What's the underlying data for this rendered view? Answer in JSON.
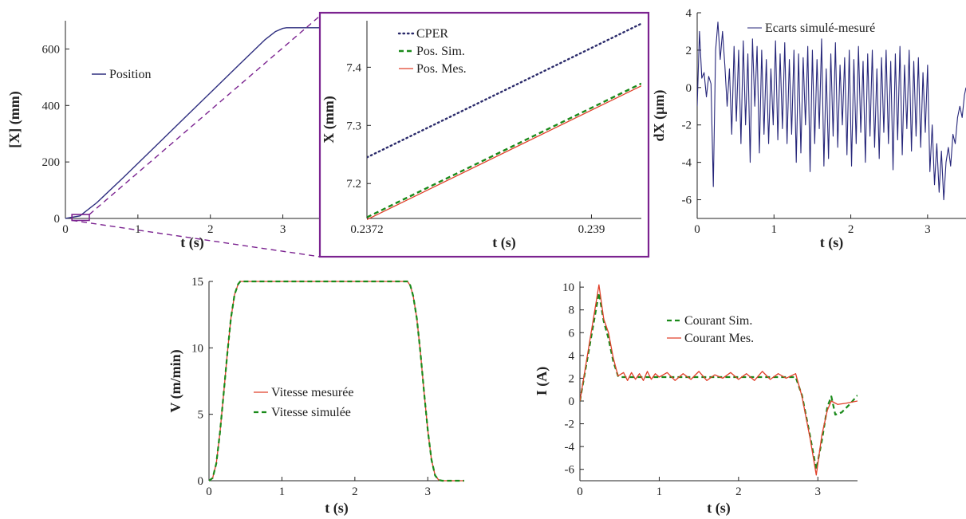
{
  "colors": {
    "position": "#2e2e7f",
    "cper": "#2b2b6b",
    "sim": "#1a8a1a",
    "mes": "#e0402a",
    "ecart": "#26267a",
    "zoom_frame": "#7b2390"
  },
  "chart_data": [
    {
      "id": "position",
      "type": "line",
      "xlabel": "t (s)",
      "ylabel": "[X] (mm)",
      "xlim": [
        0,
        3.5
      ],
      "ylim": [
        0,
        700
      ],
      "xticks": [
        0,
        1,
        2,
        3
      ],
      "yticks": [
        0,
        200,
        400,
        600
      ],
      "legend_position": "upper-left",
      "series": [
        {
          "name": "Position",
          "x": [
            0,
            0.2,
            0.43,
            0.8,
            1.2,
            1.6,
            2.0,
            2.4,
            2.75,
            2.9,
            3.0,
            3.05,
            3.2,
            3.5
          ],
          "y": [
            0,
            9,
            55,
            145,
            245,
            345,
            445,
            545,
            632,
            662,
            673,
            675,
            675,
            675
          ]
        }
      ]
    },
    {
      "id": "zoom",
      "type": "line",
      "xlabel": "t (s)",
      "ylabel": "X (mm)",
      "xlim": [
        0.2372,
        0.2394
      ],
      "ylim": [
        7.14,
        7.48
      ],
      "xticks": [
        0.2372,
        0.239
      ],
      "yticks": [
        7.2,
        7.3,
        7.4
      ],
      "legend_position": "upper-left",
      "series": [
        {
          "name": "CPER",
          "x": [
            0.2372,
            0.2394
          ],
          "y": [
            7.245,
            7.475
          ]
        },
        {
          "name": "Pos. Sim.",
          "x": [
            0.2372,
            0.2394
          ],
          "y": [
            7.142,
            7.372
          ]
        },
        {
          "name": "Pos. Mes.",
          "x": [
            0.2372,
            0.2394
          ],
          "y": [
            7.138,
            7.368
          ]
        }
      ]
    },
    {
      "id": "ecarts",
      "type": "line",
      "xlabel": "t (s)",
      "ylabel": "dX (µm)",
      "xlim": [
        0,
        3.5
      ],
      "ylim": [
        -7,
        4
      ],
      "xticks": [
        0,
        1,
        2,
        3
      ],
      "yticks": [
        -6,
        -4,
        -2,
        0,
        2,
        4
      ],
      "legend_position": "top-right",
      "series": [
        {
          "name": "Ecarts simulé-mesuré",
          "x": [
            0,
            0.03,
            0.06,
            0.09,
            0.12,
            0.15,
            0.18,
            0.21,
            0.24,
            0.27,
            0.3,
            0.33,
            0.36,
            0.39,
            0.42,
            0.45,
            0.48,
            0.51,
            0.54,
            0.57,
            0.6,
            0.63,
            0.66,
            0.69,
            0.72,
            0.75,
            0.78,
            0.81,
            0.84,
            0.87,
            0.9,
            0.93,
            0.96,
            0.99,
            1.02,
            1.05,
            1.08,
            1.11,
            1.14,
            1.17,
            1.2,
            1.23,
            1.26,
            1.29,
            1.32,
            1.35,
            1.38,
            1.41,
            1.44,
            1.47,
            1.5,
            1.53,
            1.56,
            1.59,
            1.62,
            1.65,
            1.68,
            1.71,
            1.74,
            1.77,
            1.8,
            1.83,
            1.86,
            1.89,
            1.92,
            1.95,
            1.98,
            2.01,
            2.04,
            2.07,
            2.1,
            2.13,
            2.16,
            2.19,
            2.22,
            2.25,
            2.28,
            2.31,
            2.34,
            2.37,
            2.4,
            2.43,
            2.46,
            2.49,
            2.52,
            2.55,
            2.58,
            2.61,
            2.64,
            2.67,
            2.7,
            2.73,
            2.76,
            2.79,
            2.82,
            2.85,
            2.88,
            2.91,
            2.94,
            2.97,
            3.0,
            3.03,
            3.06,
            3.09,
            3.12,
            3.15,
            3.18,
            3.21,
            3.24,
            3.27,
            3.3,
            3.33,
            3.36,
            3.39,
            3.42,
            3.45,
            3.48,
            3.5
          ],
          "y": [
            -1.0,
            3.0,
            0.5,
            0.8,
            -0.5,
            0.6,
            0.2,
            -5.3,
            2.0,
            3.5,
            1.5,
            3.0,
            1.2,
            -1.0,
            1.0,
            -2.5,
            2.2,
            -1.8,
            2.0,
            -3.0,
            2.5,
            -2.0,
            1.8,
            -4.0,
            2.6,
            -1.0,
            2.2,
            -3.5,
            2.0,
            -2.5,
            1.5,
            -3.0,
            1.0,
            -2.0,
            2.5,
            -2.8,
            1.8,
            -2.2,
            2.4,
            -3.0,
            1.5,
            -2.5,
            2.0,
            -4.0,
            1.8,
            -3.5,
            1.6,
            -2.0,
            2.2,
            -4.5,
            2.0,
            -3.0,
            1.5,
            -2.2,
            2.6,
            -4.2,
            1.0,
            -3.8,
            1.8,
            -2.6,
            2.4,
            -3.2,
            1.2,
            -2.0,
            1.6,
            -3.6,
            2.0,
            -4.2,
            1.5,
            -3.0,
            2.2,
            -2.4,
            1.4,
            -4.0,
            1.8,
            -2.6,
            2.0,
            -3.2,
            1.0,
            -3.8,
            1.6,
            -2.4,
            2.0,
            -3.0,
            1.4,
            -4.4,
            1.8,
            -2.8,
            2.2,
            -3.6,
            1.2,
            -2.2,
            2.0,
            -3.4,
            1.4,
            -2.6,
            1.6,
            -3.2,
            0.8,
            -2.4,
            1.2,
            -4.5,
            -2.0,
            -5.2,
            -3.0,
            -5.6,
            -3.4,
            -6.0,
            -4.0,
            -3.2,
            -4.2,
            -2.5,
            -3.0,
            -1.6,
            -1.0,
            -1.6,
            -0.4,
            0.0
          ]
        }
      ]
    },
    {
      "id": "vitesse",
      "type": "line",
      "xlabel": "t (s)",
      "ylabel": "V (m/min)",
      "xlim": [
        0,
        3.5
      ],
      "ylim": [
        0,
        15
      ],
      "xticks": [
        0,
        1,
        2,
        3
      ],
      "yticks": [
        0,
        5,
        10,
        15
      ],
      "legend_position": "center-left",
      "series": [
        {
          "name": "Vitesse mesurée",
          "x": [
            0,
            0.05,
            0.1,
            0.15,
            0.2,
            0.25,
            0.3,
            0.35,
            0.4,
            0.43,
            0.5,
            1.0,
            1.5,
            2.0,
            2.5,
            2.72,
            2.76,
            2.8,
            2.85,
            2.9,
            2.95,
            3.0,
            3.05,
            3.1,
            3.15,
            3.2,
            3.3,
            3.5
          ],
          "y": [
            0,
            0.2,
            1.3,
            3.6,
            6.5,
            9.5,
            12.2,
            14.0,
            14.8,
            15.0,
            15.0,
            15.0,
            15.0,
            15.0,
            15.0,
            15.0,
            14.7,
            13.9,
            12.2,
            9.6,
            6.6,
            3.8,
            1.6,
            0.4,
            0.05,
            0,
            0,
            0
          ]
        },
        {
          "name": "Vitesse simulée",
          "x": [
            0,
            0.05,
            0.1,
            0.15,
            0.2,
            0.25,
            0.3,
            0.35,
            0.4,
            0.43,
            0.5,
            1.0,
            1.5,
            2.0,
            2.5,
            2.72,
            2.76,
            2.8,
            2.85,
            2.9,
            2.95,
            3.0,
            3.05,
            3.1,
            3.15,
            3.2,
            3.3,
            3.5
          ],
          "y": [
            0,
            0.2,
            1.3,
            3.6,
            6.5,
            9.5,
            12.2,
            14.0,
            14.8,
            15.0,
            15.0,
            15.0,
            15.0,
            15.0,
            15.0,
            15.0,
            14.7,
            13.9,
            12.2,
            9.6,
            6.6,
            3.8,
            1.6,
            0.4,
            0.05,
            0,
            0,
            0
          ]
        }
      ]
    },
    {
      "id": "courant",
      "type": "line",
      "xlabel": "t (s)",
      "ylabel": "I (A)",
      "xlim": [
        0,
        3.5
      ],
      "ylim": [
        -7,
        10.5
      ],
      "xticks": [
        0,
        1,
        2,
        3
      ],
      "yticks": [
        -6,
        -4,
        -2,
        0,
        2,
        4,
        6,
        8,
        10
      ],
      "legend_position": "upper-right",
      "series": [
        {
          "name": "Courant Sim.",
          "x": [
            0,
            0.24,
            0.3,
            0.36,
            0.42,
            0.48,
            0.5,
            1.0,
            1.5,
            2.0,
            2.5,
            2.72,
            2.8,
            2.9,
            2.98,
            3.05,
            3.12,
            3.17,
            3.22,
            3.3,
            3.4,
            3.5
          ],
          "y": [
            0,
            9.5,
            7.0,
            5.5,
            3.5,
            2.2,
            2.1,
            2.1,
            2.1,
            2.1,
            2.1,
            2.1,
            0.5,
            -3.0,
            -6.0,
            -3.5,
            -0.5,
            0.4,
            -1.2,
            -1.0,
            -0.3,
            0.5
          ]
        },
        {
          "name": "Courant Mes.",
          "x": [
            0,
            0.24,
            0.3,
            0.36,
            0.42,
            0.48,
            0.55,
            0.6,
            0.65,
            0.7,
            0.75,
            0.8,
            0.85,
            0.9,
            0.95,
            1.0,
            1.1,
            1.2,
            1.3,
            1.4,
            1.5,
            1.6,
            1.7,
            1.8,
            1.9,
            2.0,
            2.1,
            2.2,
            2.3,
            2.4,
            2.5,
            2.6,
            2.72,
            2.8,
            2.9,
            2.98,
            3.05,
            3.12,
            3.17,
            3.25,
            3.35,
            3.5
          ],
          "y": [
            0,
            10.2,
            7.2,
            6.0,
            3.8,
            2.2,
            2.5,
            1.8,
            2.5,
            1.9,
            2.4,
            1.8,
            2.6,
            1.9,
            2.4,
            2.1,
            2.5,
            1.8,
            2.4,
            1.9,
            2.6,
            1.8,
            2.3,
            2.0,
            2.5,
            1.9,
            2.4,
            1.8,
            2.6,
            1.9,
            2.4,
            2.0,
            2.4,
            0.4,
            -3.2,
            -6.5,
            -3.0,
            -0.8,
            0.0,
            -0.3,
            -0.2,
            0.0
          ]
        }
      ]
    }
  ]
}
